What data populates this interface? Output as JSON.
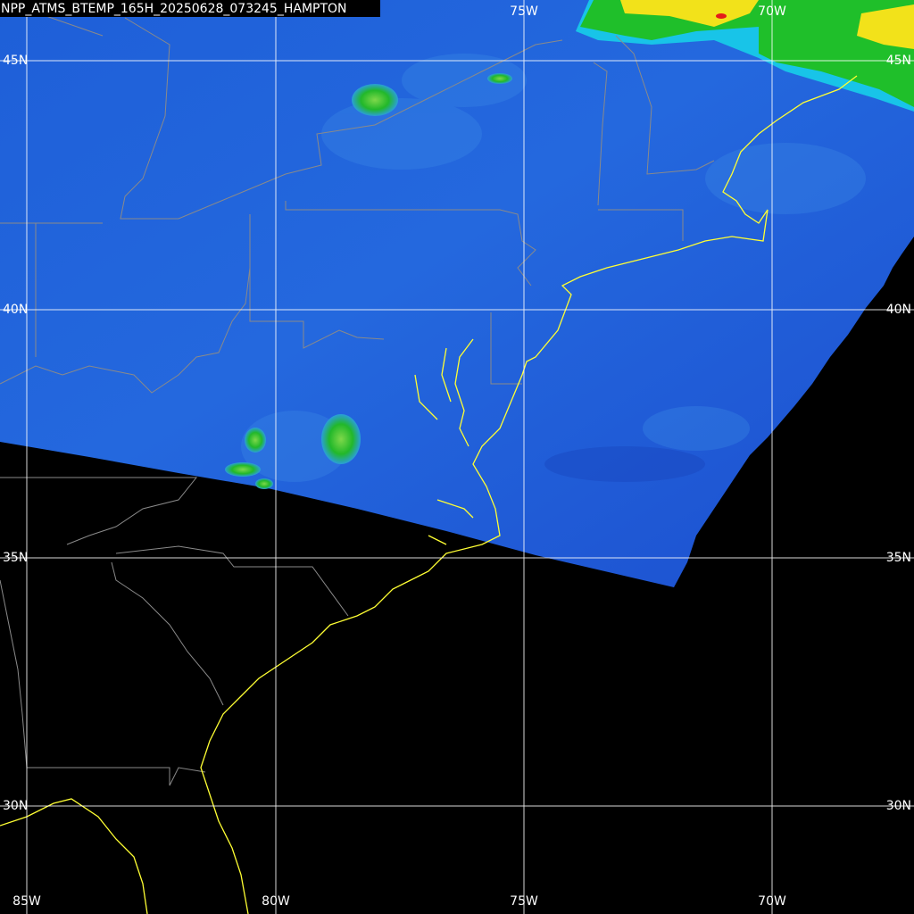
{
  "title": "NPP_ATMS_BTEMP_165H_20250628_073245_HAMPTON",
  "labels": {
    "top": [
      "75W",
      "70W"
    ],
    "left": [
      "45N",
      "40N",
      "35N",
      "30N"
    ],
    "right": [
      "45N",
      "40N",
      "35N",
      "30N"
    ],
    "bottom": [
      "85W",
      "80W",
      "75W",
      "70W"
    ]
  }
}
